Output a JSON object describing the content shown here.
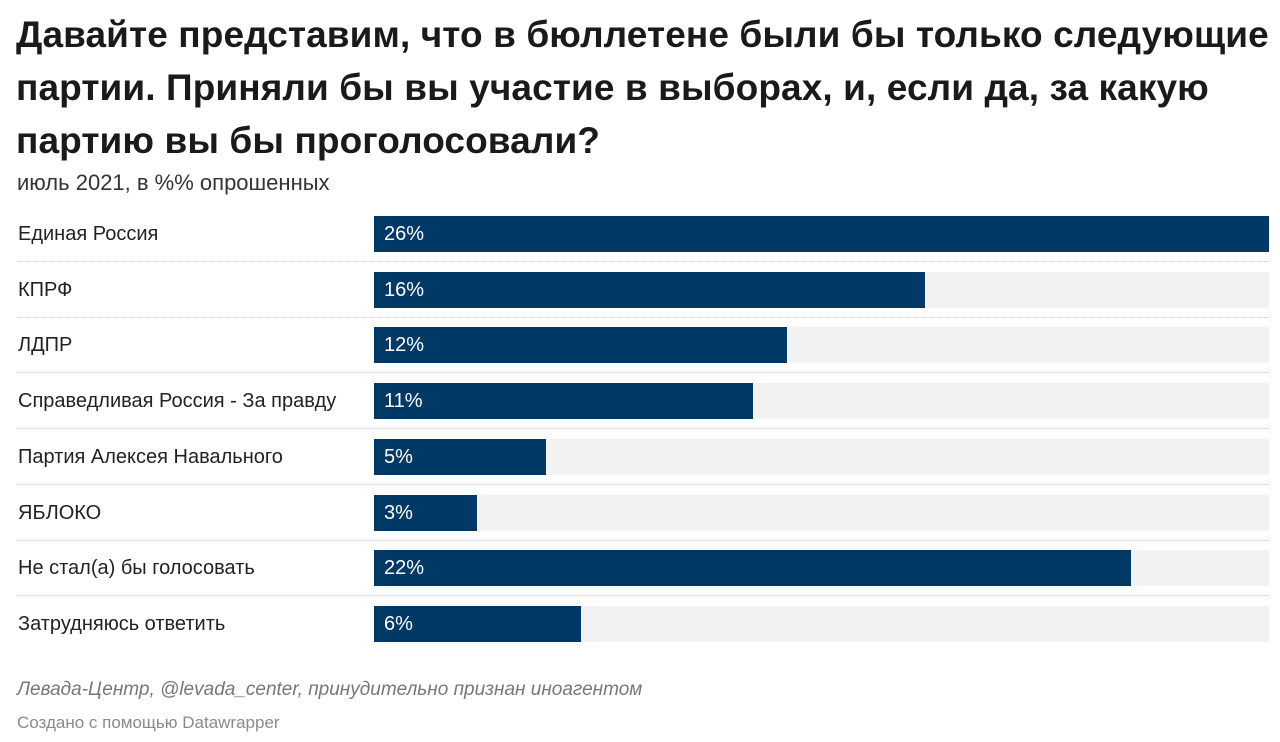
{
  "title": "Давайте представим, что в бюллетене были бы только следующие партии. Приняли бы вы участие в выборах, и, если да, за какую партию вы бы проголосовали?",
  "subtitle": "июль 2021, в %% опрошенных",
  "source": "Левада-Центр, @levada_center, принудительно признан иноагентом",
  "credit": "Создано с помощью Datawrapper",
  "chart_data": {
    "type": "bar",
    "orientation": "horizontal",
    "categories": [
      "Единая Россия",
      "КПРФ",
      "ЛДПР",
      "Справедливая Россия - За правду",
      "Партия Алексея Навального",
      "ЯБЛОКО",
      "Не стал(а) бы голосовать",
      "Затрудняюсь ответить"
    ],
    "values": [
      26,
      16,
      12,
      11,
      5,
      3,
      22,
      6
    ],
    "value_labels": [
      "26%",
      "16%",
      "12%",
      "11%",
      "5%",
      "3%",
      "22%",
      "6%"
    ],
    "xlim": [
      0,
      26
    ],
    "bar_color": "#003866",
    "track_color": "#f2f2f2",
    "grid": false,
    "legend": "none"
  }
}
